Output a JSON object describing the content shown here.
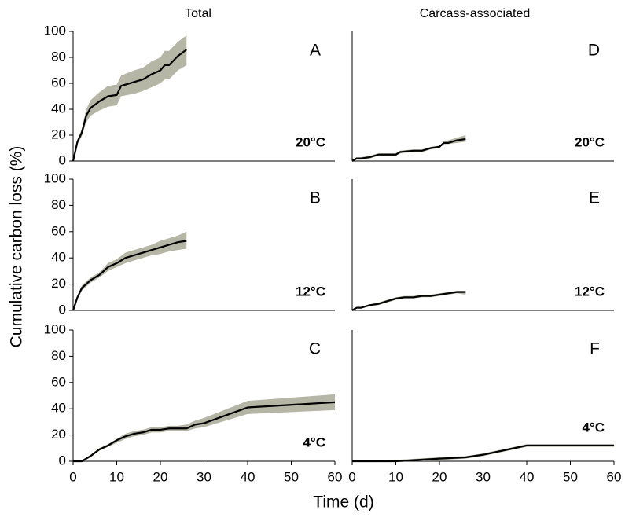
{
  "column_titles": [
    "Total",
    "Carcass-associated"
  ],
  "ylabel": "Cumulative carbon loss (%)",
  "xlabel": "Time (d)",
  "chart_data": [
    {
      "type": "line",
      "panel_label": "A",
      "annotation": "20°C",
      "annotation_corner": "bottom-right",
      "band_color": "#b6b6a6",
      "x": [
        0,
        1,
        2,
        3,
        4,
        6,
        8,
        10,
        11,
        14,
        16,
        18,
        20,
        21,
        22,
        24,
        26
      ],
      "series": [
        {
          "color": "#000000",
          "values": [
            0,
            15,
            22,
            35,
            41,
            46,
            50,
            51,
            58,
            61,
            63,
            67,
            70,
            74,
            74,
            81,
            86
          ],
          "lower": [
            0,
            13,
            19,
            30,
            35,
            39,
            42,
            43,
            50,
            52,
            54,
            57,
            60,
            63,
            63,
            70,
            74
          ],
          "upper": [
            0,
            17,
            25,
            40,
            47,
            53,
            58,
            59,
            66,
            70,
            72,
            77,
            80,
            85,
            85,
            92,
            97
          ]
        }
      ],
      "xlim": [
        0,
        60
      ],
      "ylim": [
        0,
        100
      ],
      "yticks": [
        0,
        20,
        40,
        60,
        80,
        100
      ]
    },
    {
      "type": "line",
      "panel_label": "B",
      "annotation": "12°C",
      "annotation_corner": "bottom-right",
      "band_color": "#b6b6a6",
      "x": [
        0,
        1,
        2,
        4,
        6,
        8,
        10,
        12,
        14,
        16,
        18,
        20,
        22,
        24,
        26
      ],
      "series": [
        {
          "color": "#000000",
          "values": [
            0,
            10,
            17,
            23,
            27,
            33,
            36,
            40,
            42,
            44,
            46,
            48,
            50,
            52,
            53
          ],
          "lower": [
            0,
            9,
            15,
            21,
            25,
            30,
            33,
            36,
            38,
            40,
            42,
            43,
            45,
            46,
            47
          ],
          "upper": [
            0,
            11,
            19,
            25,
            29,
            36,
            39,
            44,
            46,
            48,
            50,
            53,
            55,
            57,
            60
          ]
        }
      ],
      "xlim": [
        0,
        60
      ],
      "ylim": [
        0,
        100
      ],
      "yticks": [
        0,
        20,
        40,
        60,
        80,
        100
      ]
    },
    {
      "type": "line",
      "panel_label": "C",
      "annotation": "4°C",
      "annotation_corner": "bottom-right",
      "band_color": "#b6b6a6",
      "x": [
        0,
        2,
        4,
        6,
        8,
        10,
        12,
        14,
        16,
        18,
        20,
        22,
        24,
        26,
        28,
        30,
        40,
        60
      ],
      "series": [
        {
          "color": "#000000",
          "values": [
            0,
            0,
            4,
            9,
            12,
            16,
            19,
            21,
            22,
            24,
            24,
            25,
            25,
            25,
            28,
            29,
            41,
            45
          ],
          "lower": [
            0,
            0,
            3,
            8,
            11,
            14,
            17,
            19,
            20,
            22,
            22,
            23,
            23,
            23,
            25,
            26,
            36,
            39
          ],
          "upper": [
            0,
            0,
            5,
            10,
            13,
            17,
            21,
            23,
            24,
            26,
            26,
            27,
            27,
            28,
            31,
            33,
            46,
            51
          ]
        }
      ],
      "xlim": [
        0,
        60
      ],
      "ylim": [
        0,
        100
      ],
      "yticks": [
        0,
        20,
        40,
        60,
        80,
        100
      ],
      "xticks": [
        0,
        10,
        20,
        30,
        40,
        50,
        60
      ]
    },
    {
      "type": "line",
      "panel_label": "D",
      "annotation": "20°C",
      "annotation_corner": "bottom-right",
      "band_color": "#b6b6a6",
      "x": [
        0,
        1,
        2,
        4,
        6,
        8,
        10,
        11,
        14,
        16,
        18,
        20,
        21,
        22,
        24,
        26
      ],
      "series": [
        {
          "color": "#000000",
          "values": [
            0,
            2,
            2,
            3,
            5,
            5,
            5,
            7,
            8,
            8,
            10,
            11,
            14,
            14,
            16,
            17
          ],
          "lower": [
            0,
            1,
            1,
            2,
            4,
            4,
            4,
            6,
            7,
            7,
            9,
            10,
            13,
            13,
            14,
            15
          ],
          "upper": [
            0,
            3,
            3,
            4,
            6,
            6,
            6,
            8,
            9,
            9,
            11,
            12,
            15,
            16,
            18,
            20
          ]
        }
      ],
      "xlim": [
        0,
        60
      ],
      "ylim": [
        0,
        100
      ]
    },
    {
      "type": "line",
      "panel_label": "E",
      "annotation": "12°C",
      "annotation_corner": "bottom-right",
      "band_color": "#b6b6a6",
      "x": [
        0,
        1,
        2,
        4,
        6,
        8,
        10,
        12,
        14,
        16,
        18,
        20,
        22,
        24,
        26
      ],
      "series": [
        {
          "color": "#000000",
          "values": [
            0,
            2,
            2,
            4,
            5,
            7,
            9,
            10,
            10,
            11,
            11,
            12,
            13,
            14,
            14
          ],
          "lower": [
            0,
            2,
            2,
            3,
            4,
            6,
            8,
            9,
            9,
            10,
            10,
            11,
            12,
            13,
            12
          ],
          "upper": [
            0,
            2,
            2,
            4,
            6,
            8,
            10,
            11,
            11,
            12,
            12,
            13,
            14,
            15,
            15
          ]
        }
      ],
      "xlim": [
        0,
        60
      ],
      "ylim": [
        0,
        100
      ]
    },
    {
      "type": "line",
      "panel_label": "F",
      "annotation": "4°C",
      "annotation_corner": "top-right",
      "band_color": "#b6b6a6",
      "x": [
        0,
        10,
        20,
        26,
        30,
        40,
        60
      ],
      "series": [
        {
          "color": "#000000",
          "values": [
            0,
            0,
            2,
            3,
            5,
            12,
            12
          ],
          "lower": [
            0,
            0,
            1,
            2,
            4,
            11,
            11
          ],
          "upper": [
            0,
            1,
            3,
            4,
            6,
            13,
            13
          ]
        }
      ],
      "xlim": [
        0,
        60
      ],
      "ylim": [
        0,
        100
      ],
      "xticks": [
        0,
        10,
        20,
        30,
        40,
        50,
        60
      ]
    }
  ]
}
